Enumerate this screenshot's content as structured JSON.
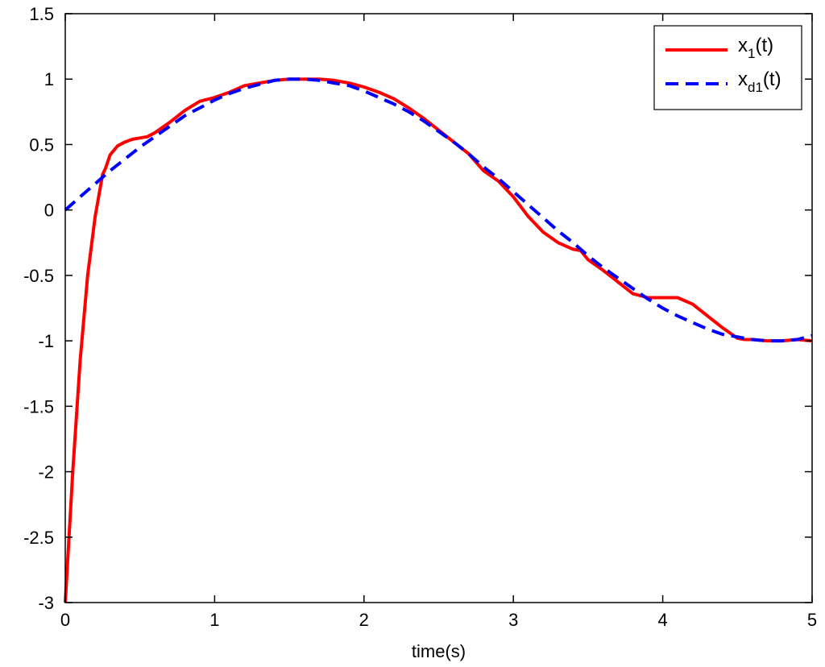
{
  "chart_data": {
    "type": "line",
    "xlabel": "time(s)",
    "ylabel": "",
    "xlim": [
      0,
      5
    ],
    "ylim": [
      -3,
      1.5
    ],
    "grid": false,
    "legend_position": "top-right",
    "x_ticks": [
      "0",
      "1",
      "2",
      "3",
      "4",
      "5"
    ],
    "y_ticks": [
      "-3",
      "-2.5",
      "-2",
      "-1.5",
      "-1",
      "-0.5",
      "0",
      "0.5",
      "1",
      "1.5"
    ],
    "series": [
      {
        "name": "x1(t)",
        "legend_base": "x",
        "legend_sub": "1",
        "legend_suffix": "(t)",
        "color": "#ff0000",
        "style": "solid",
        "x": [
          0,
          0.05,
          0.1,
          0.15,
          0.2,
          0.25,
          0.27,
          0.3,
          0.35,
          0.4,
          0.45,
          0.5,
          0.55,
          0.6,
          0.7,
          0.8,
          0.9,
          1.0,
          1.1,
          1.2,
          1.3,
          1.4,
          1.5,
          1.6,
          1.7,
          1.8,
          1.9,
          2.0,
          2.1,
          2.2,
          2.3,
          2.4,
          2.5,
          2.6,
          2.7,
          2.8,
          2.9,
          3.0,
          3.1,
          3.2,
          3.3,
          3.4,
          3.45,
          3.5,
          3.6,
          3.7,
          3.8,
          3.9,
          4.0,
          4.1,
          4.2,
          4.3,
          4.4,
          4.5,
          4.55,
          4.6,
          4.7,
          4.8,
          4.9,
          5.0
        ],
        "y": [
          -3.0,
          -2.0,
          -1.15,
          -0.5,
          -0.05,
          0.27,
          0.32,
          0.42,
          0.49,
          0.52,
          0.54,
          0.55,
          0.56,
          0.59,
          0.67,
          0.76,
          0.83,
          0.86,
          0.9,
          0.95,
          0.97,
          0.99,
          1.0,
          1.0,
          1.0,
          0.99,
          0.97,
          0.94,
          0.9,
          0.85,
          0.78,
          0.7,
          0.61,
          0.52,
          0.43,
          0.3,
          0.22,
          0.1,
          -0.05,
          -0.17,
          -0.25,
          -0.3,
          -0.31,
          -0.38,
          -0.46,
          -0.55,
          -0.64,
          -0.67,
          -0.67,
          -0.67,
          -0.72,
          -0.81,
          -0.9,
          -0.98,
          -0.99,
          -0.99,
          -1.0,
          -1.0,
          -0.99,
          -1.0
        ]
      },
      {
        "name": "xd1(t)",
        "legend_base": "x",
        "legend_sub": "d1",
        "legend_suffix": "(t)",
        "color": "#0000ff",
        "style": "dashed",
        "x": [
          0,
          0.1,
          0.2,
          0.3,
          0.4,
          0.5,
          0.6,
          0.7,
          0.8,
          0.9,
          1.0,
          1.1,
          1.2,
          1.3,
          1.4,
          1.5,
          1.6,
          1.7,
          1.8,
          1.9,
          2.0,
          2.1,
          2.2,
          2.3,
          2.4,
          2.5,
          2.6,
          2.7,
          2.8,
          2.9,
          3.0,
          3.1,
          3.2,
          3.3,
          3.4,
          3.5,
          3.6,
          3.7,
          3.8,
          3.9,
          4.0,
          4.1,
          4.2,
          4.3,
          4.4,
          4.5,
          4.6,
          4.7,
          4.8,
          4.9,
          5.0
        ],
        "y": [
          0.0,
          0.1,
          0.2,
          0.3,
          0.39,
          0.48,
          0.56,
          0.64,
          0.72,
          0.78,
          0.84,
          0.89,
          0.93,
          0.96,
          0.99,
          1.0,
          1.0,
          0.99,
          0.97,
          0.95,
          0.91,
          0.86,
          0.81,
          0.75,
          0.68,
          0.6,
          0.52,
          0.43,
          0.33,
          0.24,
          0.14,
          0.04,
          -0.06,
          -0.16,
          -0.25,
          -0.35,
          -0.44,
          -0.52,
          -0.6,
          -0.68,
          -0.75,
          -0.81,
          -0.86,
          -0.91,
          -0.95,
          -0.97,
          -0.99,
          -1.0,
          -1.0,
          -0.99,
          -0.96
        ]
      }
    ]
  }
}
